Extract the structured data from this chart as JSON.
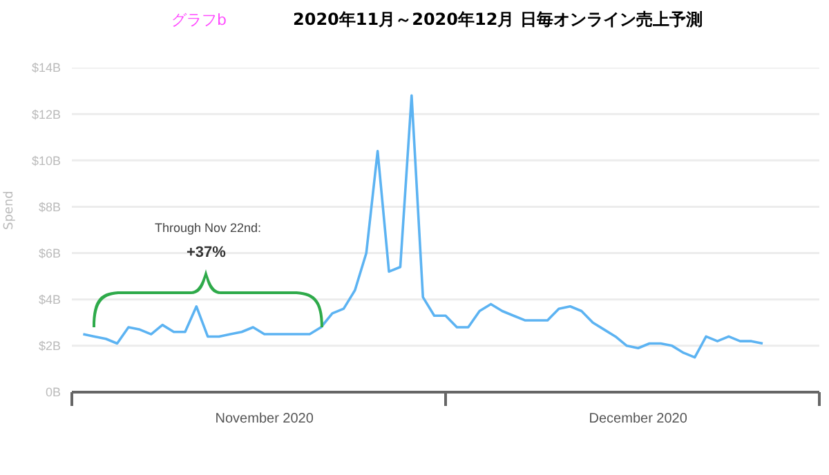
{
  "chart_data": {
    "type": "line",
    "title": "2020年11月～2020年12月  日毎オンライン売上予測",
    "ylabel": "Spend",
    "annotations": [
      "グラフb",
      "Through Nov 22nd:",
      "+37%"
    ],
    "x": [
      "2020-11-01",
      "2020-11-02",
      "2020-11-03",
      "2020-11-04",
      "2020-11-05",
      "2020-11-06",
      "2020-11-07",
      "2020-11-08",
      "2020-11-09",
      "2020-11-10",
      "2020-11-11",
      "2020-11-12",
      "2020-11-13",
      "2020-11-14",
      "2020-11-15",
      "2020-11-16",
      "2020-11-17",
      "2020-11-18",
      "2020-11-19",
      "2020-11-20",
      "2020-11-21",
      "2020-11-22",
      "2020-11-23",
      "2020-11-24",
      "2020-11-25",
      "2020-11-26",
      "2020-11-27",
      "2020-11-28",
      "2020-11-29",
      "2020-11-30",
      "2020-12-01",
      "2020-12-02",
      "2020-12-03",
      "2020-12-04",
      "2020-12-05",
      "2020-12-06",
      "2020-12-07",
      "2020-12-08",
      "2020-12-09",
      "2020-12-10",
      "2020-12-11",
      "2020-12-12",
      "2020-12-13",
      "2020-12-14",
      "2020-12-15",
      "2020-12-16",
      "2020-12-17",
      "2020-12-18",
      "2020-12-19",
      "2020-12-20",
      "2020-12-21",
      "2020-12-22",
      "2020-12-23",
      "2020-12-24",
      "2020-12-25",
      "2020-12-26",
      "2020-12-27",
      "2020-12-28",
      "2020-12-29",
      "2020-12-30",
      "2020-12-31"
    ],
    "series": [
      {
        "color": "#5cb3f2",
        "values": [
          2.5,
          2.4,
          2.3,
          2.1,
          2.8,
          2.7,
          2.5,
          2.9,
          2.6,
          2.6,
          3.7,
          2.4,
          2.4,
          2.5,
          2.6,
          2.8,
          2.5,
          2.5,
          2.5,
          2.5,
          2.5,
          2.8,
          3.4,
          3.6,
          4.4,
          6.0,
          10.4,
          5.2,
          5.4,
          12.8,
          4.1,
          3.3,
          3.3,
          2.8,
          2.8,
          3.5,
          3.8,
          3.5,
          3.3,
          3.1,
          3.1,
          3.1,
          3.6,
          3.7,
          3.5,
          3.0,
          2.7,
          2.4,
          2.0,
          1.9,
          2.1,
          2.1,
          2.0,
          1.7,
          1.5,
          2.4,
          2.2,
          2.4,
          2.2,
          2.2,
          2.1
        ]
      }
    ],
    "xlim": [
      "2020-10-31",
      "2021-01-05"
    ],
    "xticks": [
      {
        "value": "2020-10-31",
        "label": null
      },
      {
        "value": "2020-11-17",
        "label": "November 2020"
      },
      {
        "value": "2020-12-03",
        "label": null
      },
      {
        "value": "2020-12-20",
        "label": "December 2020"
      },
      {
        "value": "2021-01-05",
        "label": null
      }
    ],
    "ylim": [
      0,
      14
    ],
    "yticks": [
      {
        "value": 0,
        "label": "0B"
      },
      {
        "value": 2,
        "label": "$2B"
      },
      {
        "value": 4,
        "label": "$4B"
      },
      {
        "value": 6,
        "label": "$6B"
      },
      {
        "value": 8,
        "label": "$8B"
      },
      {
        "value": 10,
        "label": "$10B"
      },
      {
        "value": 12,
        "label": "$12B"
      },
      {
        "value": 14,
        "label": "$14B"
      }
    ],
    "grid": "y",
    "marker": "none",
    "line_style": "solid"
  }
}
